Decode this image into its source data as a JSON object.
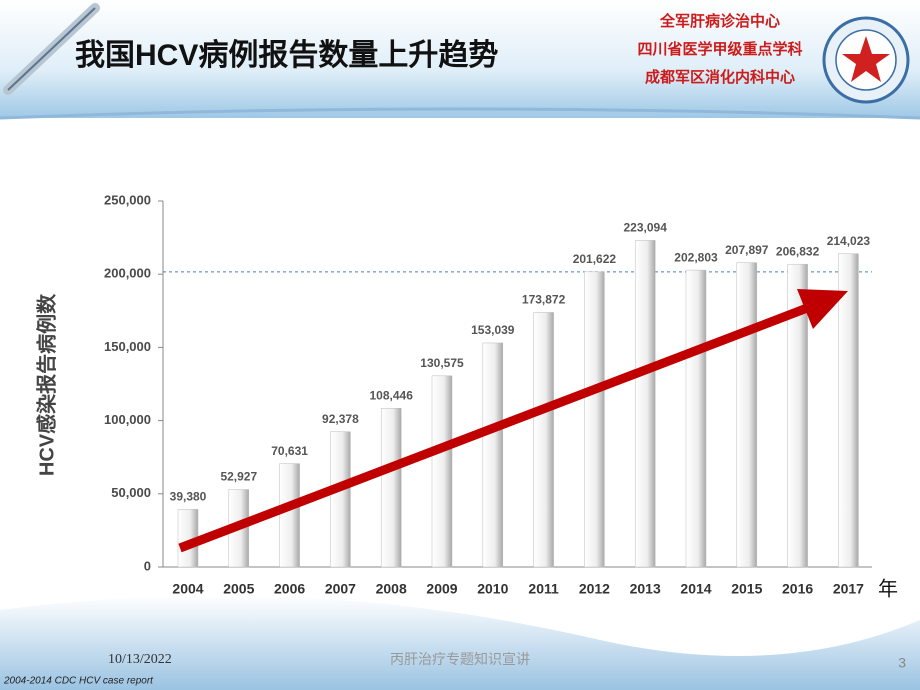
{
  "header": {
    "logo_lines": [
      "全军肝病诊治中心",
      "四川省医学甲级重点学科",
      "成都军区消化内科中心"
    ]
  },
  "chart_data": {
    "type": "bar",
    "title": "我国HCV病例报告数量上升趋势",
    "y_label": "HCV感染报告病例数",
    "x_unit": "年",
    "categories": [
      "2004",
      "2005",
      "2006",
      "2007",
      "2008",
      "2009",
      "2010",
      "2011",
      "2012",
      "2013",
      "2014",
      "2015",
      "2016",
      "2017"
    ],
    "values": [
      39380,
      52927,
      70631,
      92378,
      108446,
      130575,
      153039,
      173872,
      201622,
      223094,
      202803,
      207897,
      206832,
      214023
    ],
    "value_labels": [
      "39,380",
      "52,927",
      "70,631",
      "92,378",
      "108,446",
      "130,575",
      "153,039",
      "173,872",
      "201,622",
      "223,094",
      "202,803",
      "207,897",
      "206,832",
      "214,023"
    ],
    "ylim": [
      0,
      250000
    ],
    "yticks": [
      0,
      {
        "value": 50000,
        "label": "50,000"
      },
      {
        "value": 100000,
        "label": "100,000"
      },
      {
        "value": 150000,
        "label": "150,000"
      },
      {
        "value": 200000,
        "label": "200,000"
      },
      {
        "value": 250000,
        "label": "250,000"
      }
    ],
    "source": "2004-2014 CDC HCV case report"
  },
  "footer": {
    "date": "10/13/2022",
    "center": "丙肝治疗专题知识宣讲",
    "page": "3"
  }
}
